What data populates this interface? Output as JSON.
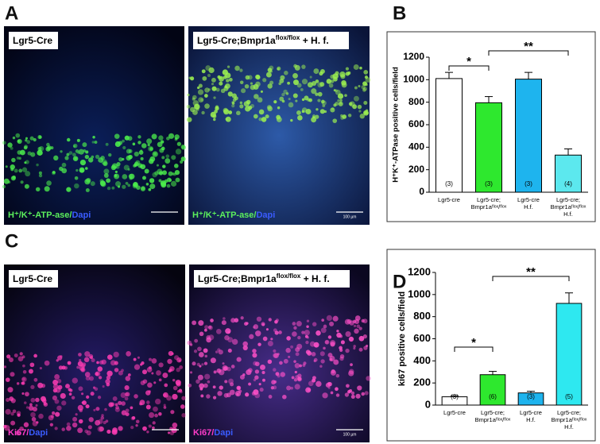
{
  "panels": [
    {
      "letter": "A",
      "images": [
        {
          "title": [
            "Lgr5-Cre"
          ],
          "caption": [
            "H⁺/K⁺-ATP-ase/",
            "Dapi"
          ]
        },
        {
          "title": [
            "Lgr5-Cre;Bmpr1a",
            "flox/flox",
            " + H. f."
          ],
          "caption": [
            "H⁺/K⁺-ATP-ase/",
            "Dapi"
          ],
          "scale": "100 µm"
        }
      ]
    },
    {
      "letter": "B"
    },
    {
      "letter": "C",
      "images": [
        {
          "title": [
            "Lgr5-Cre"
          ],
          "caption": [
            "Ki67/",
            "Dapi"
          ]
        },
        {
          "title": [
            "Lgr5-Cre;Bmpr1a",
            "flox/flox",
            " + H. f."
          ],
          "caption": [
            "Ki67/",
            "Dapi"
          ],
          "scale": "100 µm"
        }
      ]
    },
    {
      "letter": "D"
    }
  ],
  "chart_data": [
    {
      "type": "bar",
      "y_label": "H⁺K⁺-ATPase positive cells/field",
      "categories": [
        [
          "Lgr5-cre"
        ],
        [
          "Lgr5-cre;",
          "Bmpr1aᶠˡᵒˣ/ᶠˡᵒˣ"
        ],
        [
          "Lgr5-cre",
          "H.f."
        ],
        [
          "Lgr5-cre;",
          "Bmpr1aᶠˡᵒˣ/ᶠˡᵒˣ",
          "H.f."
        ]
      ],
      "values": [
        1010,
        795,
        1005,
        330
      ],
      "errors": [
        55,
        55,
        60,
        55
      ],
      "bar_labels": [
        "(3)",
        "(3)",
        "(3)",
        "(4)"
      ],
      "colors": [
        "#ffffff",
        "#2ee82e",
        "#1eb4ee",
        "#5ce8ee"
      ],
      "annotations": [
        "*",
        "**"
      ],
      "ylim": [
        0,
        1200
      ],
      "yticks": [
        0,
        200,
        400,
        600,
        800,
        1000,
        1200
      ]
    },
    {
      "type": "bar",
      "y_label": "ki67 positive cells/field",
      "categories": [
        [
          "Lgr5-cre"
        ],
        [
          "Lgr5-cre;",
          "Bmpr1aᶠˡᵒˣ/ᶠˡᵒˣ"
        ],
        [
          "Lgr5-cre",
          "H.f."
        ],
        [
          "Lgr5-cre;",
          "Bmpr1aᶠˡᵒˣ/ᶠˡᵒˣ",
          "H.f."
        ]
      ],
      "values": [
        75,
        275,
        110,
        920
      ],
      "errors": [
        10,
        30,
        15,
        95
      ],
      "bar_labels": [
        "(3)",
        "(6)",
        "(3)",
        "(5)"
      ],
      "colors": [
        "#ffffff",
        "#2ee82e",
        "#1eb4ee",
        "#2ee8f0"
      ],
      "annotations": [
        "*",
        "**"
      ],
      "ylim": [
        0,
        1200
      ],
      "yticks": [
        0,
        200,
        400,
        600,
        800,
        1000,
        1200
      ]
    }
  ]
}
